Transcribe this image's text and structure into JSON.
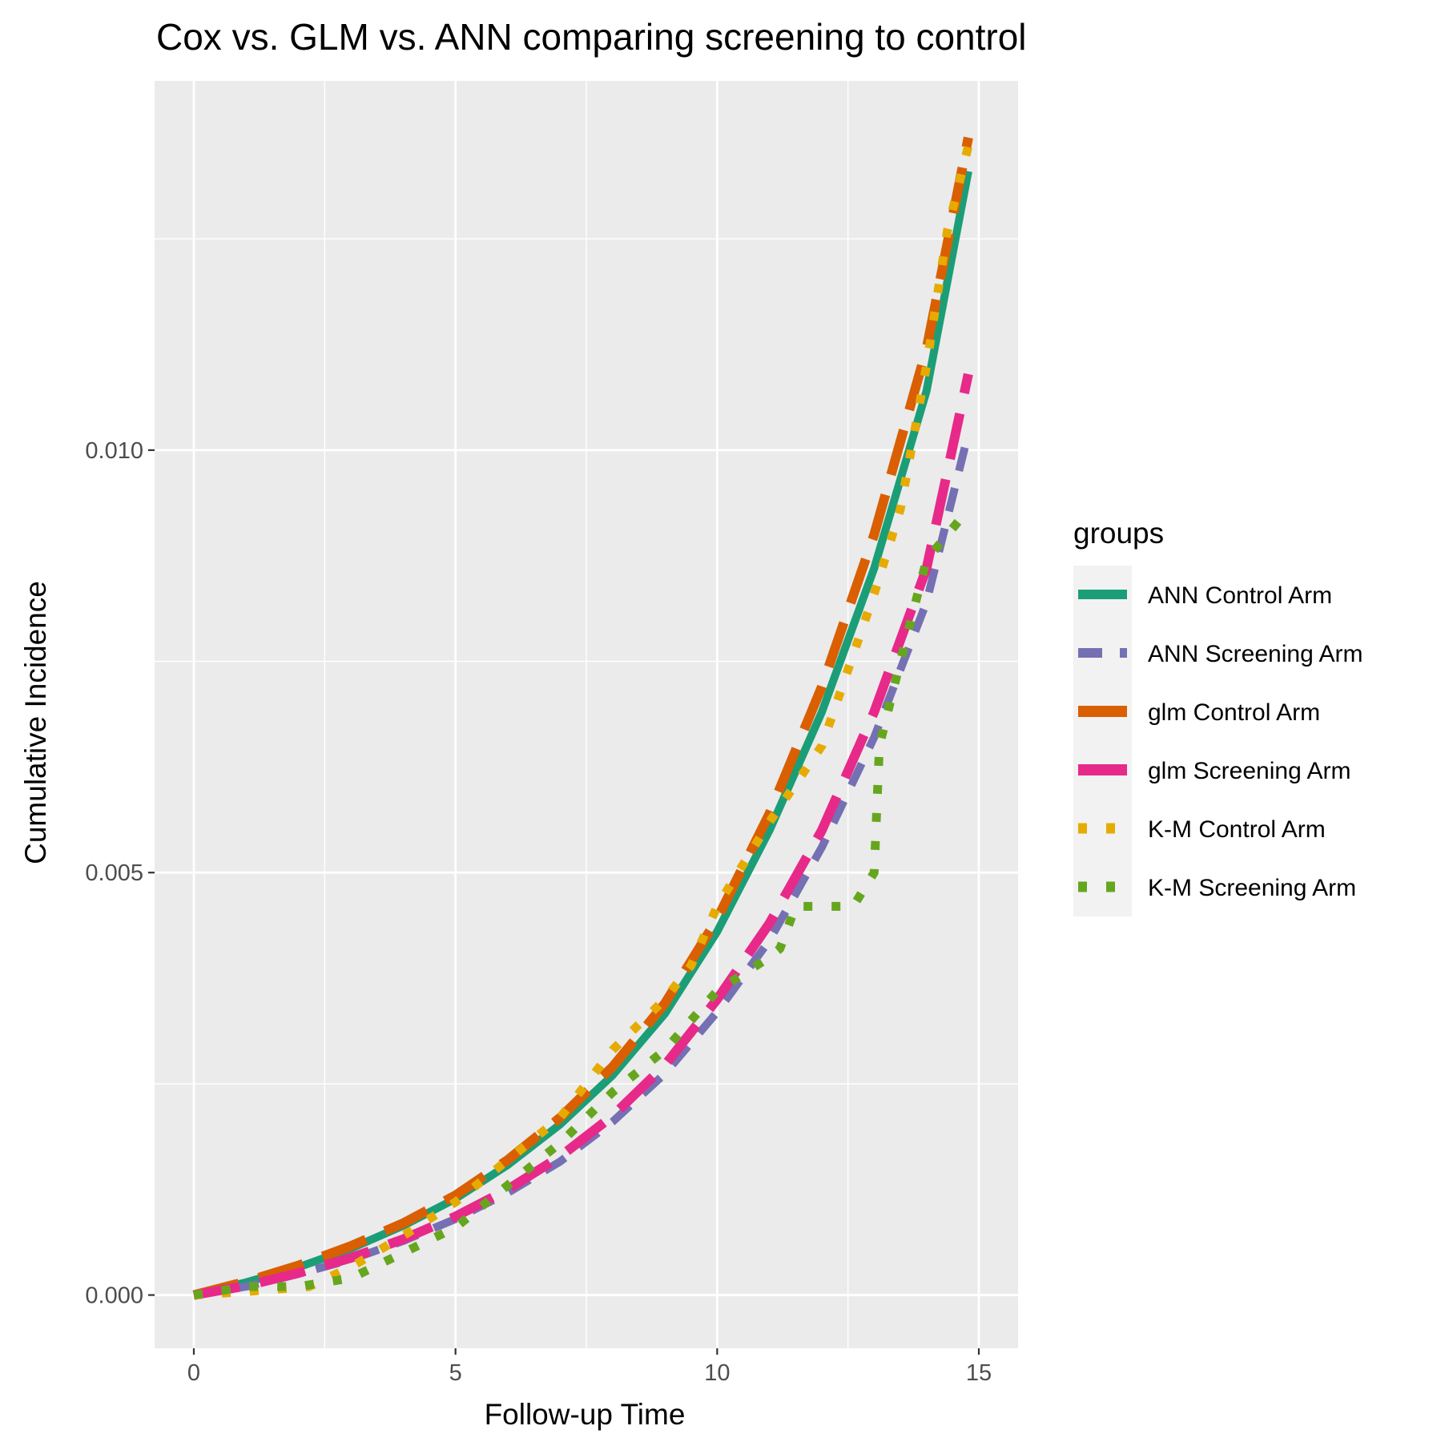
{
  "chart_data": {
    "type": "line",
    "title": "Cox vs. GLM vs. ANN comparing screening to control",
    "xlabel": "Follow-up Time",
    "ylabel": "Cumulative Incidence",
    "xlim": [
      -0.75,
      15.75
    ],
    "ylim": [
      -0.00063,
      0.01437
    ],
    "x_ticks": [
      0,
      5,
      10,
      15
    ],
    "x_tick_labels": [
      "0",
      "5",
      "10",
      "15"
    ],
    "y_ticks": [
      0,
      0.005,
      0.01
    ],
    "y_tick_labels": [
      "0.000",
      "0.005",
      "0.010"
    ],
    "grid": true,
    "legend": {
      "title": "groups",
      "position": "right"
    },
    "series": [
      {
        "name": "ANN Control Arm",
        "color": "#1b9e77",
        "line": "solid",
        "x": [
          0,
          1,
          2,
          3,
          4,
          5,
          6,
          7,
          8,
          9,
          10,
          11,
          12,
          13,
          14,
          14.8
        ],
        "y": [
          0,
          0.00015,
          0.00033,
          0.00055,
          0.00082,
          0.00114,
          0.00154,
          0.00202,
          0.0026,
          0.00333,
          0.0043,
          0.0055,
          0.0069,
          0.0086,
          0.0107,
          0.0133
        ]
      },
      {
        "name": "ANN Screening Arm",
        "color": "#7570b3",
        "line": "dashed",
        "x": [
          0,
          1,
          2,
          3,
          4,
          5,
          6,
          7,
          8,
          9,
          10,
          11,
          12,
          13,
          14,
          14.8
        ],
        "y": [
          0,
          0.0001,
          0.00025,
          0.00042,
          0.00064,
          0.0009,
          0.00121,
          0.00158,
          0.00205,
          0.00262,
          0.00335,
          0.0042,
          0.0053,
          0.0066,
          0.0082,
          0.0102
        ]
      },
      {
        "name": "glm Control Arm",
        "color": "#d95f02",
        "line": "longdash",
        "x": [
          0,
          1,
          2,
          3,
          4,
          5,
          6,
          7,
          8,
          9,
          10,
          11,
          12,
          13,
          14,
          14.8
        ],
        "y": [
          0,
          0.00016,
          0.00035,
          0.00058,
          0.00085,
          0.00118,
          0.0016,
          0.0021,
          0.0027,
          0.00345,
          0.00445,
          0.0057,
          0.0072,
          0.009,
          0.0112,
          0.0137
        ]
      },
      {
        "name": "glm Screening Arm",
        "color": "#e7298a",
        "line": "longdash",
        "x": [
          0,
          1,
          2,
          3,
          4,
          5,
          6,
          7,
          8,
          9,
          10,
          11,
          12,
          13,
          14,
          14.8
        ],
        "y": [
          0,
          0.00011,
          0.00026,
          0.00044,
          0.00066,
          0.00093,
          0.00125,
          0.00164,
          0.00212,
          0.00272,
          0.0035,
          0.0044,
          0.0055,
          0.0069,
          0.0086,
          0.0109
        ]
      },
      {
        "name": "K-M Control Arm",
        "color": "#e6ab02",
        "line": "dotted",
        "x": [
          0,
          1.2,
          2.2,
          3,
          4,
          5,
          6,
          7,
          8,
          9,
          9.5,
          10,
          11,
          12,
          12.5,
          13,
          13.5,
          14,
          14.4,
          14.8
        ],
        "y": [
          0,
          5e-05,
          0.0001,
          0.00033,
          0.0007,
          0.0011,
          0.0016,
          0.0021,
          0.0029,
          0.0035,
          0.0039,
          0.0046,
          0.0056,
          0.0065,
          0.0074,
          0.0083,
          0.0093,
          0.011,
          0.0126,
          0.0136
        ]
      },
      {
        "name": "K-M Screening Arm",
        "color": "#66a61e",
        "line": "dotted",
        "x": [
          0,
          1,
          2,
          3,
          4,
          5,
          6,
          7,
          8,
          9,
          10,
          10.5,
          11,
          11.2,
          11.5,
          12,
          12.6,
          13,
          13.1,
          13.5,
          14,
          14.8
        ],
        "y": [
          0,
          0.0001,
          0.0001,
          0.0002,
          0.0005,
          0.0008,
          0.0013,
          0.0018,
          0.0024,
          0.0029,
          0.0036,
          0.0038,
          0.004,
          0.0041,
          0.0046,
          0.0046,
          0.0046,
          0.005,
          0.0065,
          0.0075,
          0.0087,
          0.0093
        ]
      }
    ]
  }
}
